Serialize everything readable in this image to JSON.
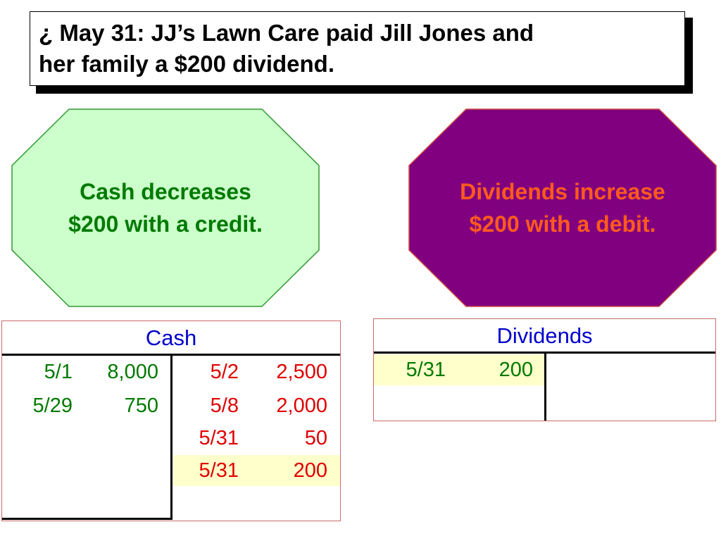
{
  "title": {
    "line1": "¿ May 31: JJ’s Lawn Care paid Jill Jones and",
    "line2": "her family a $200 dividend."
  },
  "octagons": {
    "cash": {
      "line1": "Cash decreases",
      "line2": "$200 with a credit.",
      "fill": "#ccffcc",
      "stroke": "#339933",
      "text_color": "#007a00"
    },
    "dividends": {
      "line1": "Dividends increase",
      "line2": "$200 with a debit.",
      "fill": "#800080",
      "stroke": "#cc4444",
      "text_color": "#ff5a1e"
    }
  },
  "cash_account": {
    "title": "Cash",
    "debits": [
      {
        "date": "5/1",
        "amount": "8,000"
      },
      {
        "date": "5/29",
        "amount": "750"
      }
    ],
    "credits": [
      {
        "date": "5/2",
        "amount": "2,500"
      },
      {
        "date": "5/8",
        "amount": "2,000"
      },
      {
        "date": "5/31",
        "amount": "50"
      },
      {
        "date": "5/31",
        "amount": "200"
      }
    ]
  },
  "dividends_account": {
    "title": "Dividends",
    "debits": [
      {
        "date": "5/31",
        "amount": "200"
      }
    ]
  },
  "colors": {
    "debit_text": "#007a00",
    "credit_text": "#e00000",
    "account_title": "#0000cc",
    "highlight": "#ffffcc"
  }
}
